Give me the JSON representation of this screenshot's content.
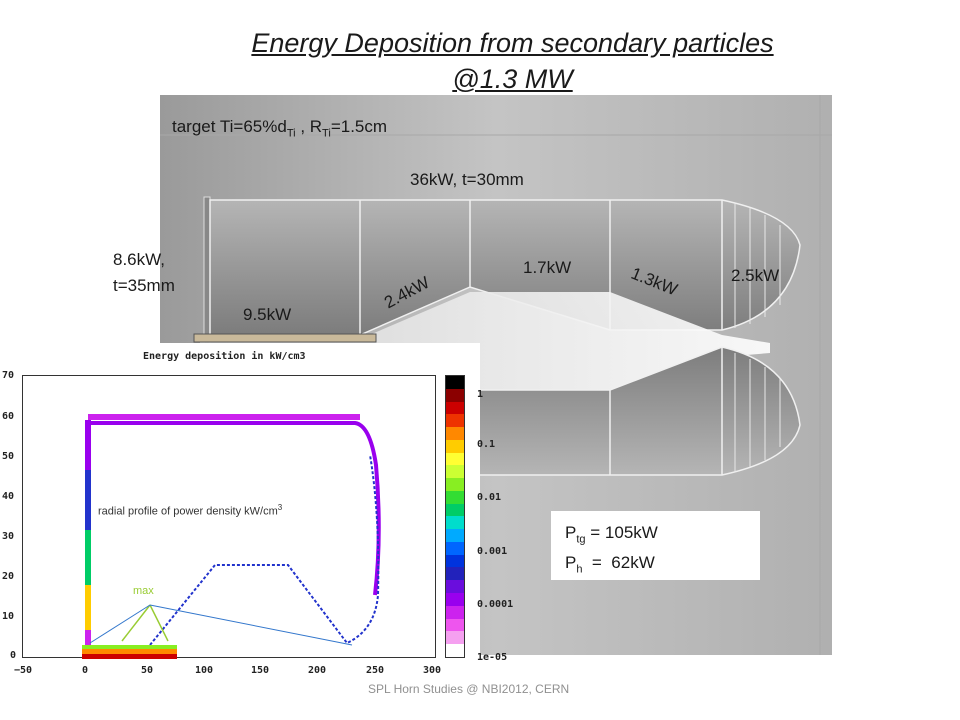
{
  "title": {
    "line1": "Energy Deposition from secondary particles",
    "line2": "@1.3 MW"
  },
  "target_note": {
    "prefix": "target Ti=65%d",
    "sub1": "Ti",
    "middle": " , R",
    "sub2": "Ti",
    "suffix": "=1.5cm"
  },
  "power_labels": {
    "outer_conductor": "36kW, t=30mm",
    "inner_left_1": "8.6kW,",
    "inner_left_2": "t=35mm",
    "inner_rod": "9.5kW",
    "cone_in": "2.4kW",
    "neck": "1.7kW",
    "cone_out": "1.3kW",
    "end_cap": "2.5kW"
  },
  "plot": {
    "title": "Energy deposition in kW/cm3",
    "annotation": "radial profile of power density kW/cm",
    "annotation_sup": "3",
    "max_label": "max",
    "y_ticks": [
      "70",
      "60",
      "50",
      "40",
      "30",
      "20",
      "10",
      "0"
    ],
    "x_ticks": [
      "−50",
      "0",
      "50",
      "100",
      "150",
      "200",
      "250",
      "300"
    ]
  },
  "colorbar": {
    "labels": [
      "1",
      "0.1",
      "0.01",
      "0.001",
      "0.0001",
      "1e-05"
    ],
    "colors": [
      "#000000",
      "#8b0000",
      "#cc0000",
      "#ee3300",
      "#ff8800",
      "#ffcc00",
      "#ffff33",
      "#ccff33",
      "#88ee22",
      "#33dd33",
      "#00cc66",
      "#00ddcc",
      "#00aaff",
      "#0066ff",
      "#0033dd",
      "#2222bb",
      "#6a0ddd",
      "#9900ee",
      "#cc22ee",
      "#ee55ee",
      "#f5a0f0",
      "#ffffff"
    ]
  },
  "totals": {
    "ptg_label": "P",
    "ptg_sub": "tg",
    "ptg_value": " = 105kW",
    "ph_label": "P",
    "ph_sub": "h",
    "ph_value": "  =  62kW"
  },
  "footer": "SPL Horn Studies @ NBI2012, CERN"
}
